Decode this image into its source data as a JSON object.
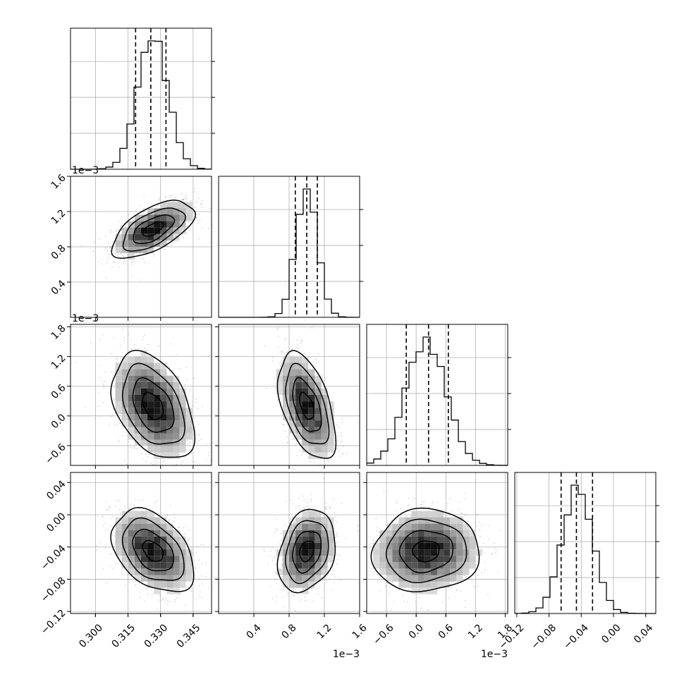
{
  "chart_data": {
    "type": "corner",
    "title": "",
    "parameters": [
      {
        "index": 0,
        "xlim": [
          0.2885,
          0.3535
        ],
        "ticks": [
          "0.300",
          "0.315",
          "0.330",
          "0.345"
        ],
        "tick_values": [
          0.3,
          0.315,
          0.33,
          0.345
        ],
        "offset_text": "",
        "quantiles": [
          0.3185,
          0.3255,
          0.3325
        ],
        "peak": 0.3265,
        "sigma": 0.007
      },
      {
        "index": 1,
        "xlim": [
          0.0,
          1.6
        ],
        "ticks": [
          "0.4",
          "0.8",
          "1.2",
          "1.6"
        ],
        "tick_values": [
          0.4,
          0.8,
          1.2,
          1.6
        ],
        "offset_text": "1e−3",
        "quantiles": [
          0.87,
          1.0,
          1.12
        ],
        "peak": 1.0,
        "sigma": 0.12
      },
      {
        "index": 2,
        "xlim": [
          -1.0,
          1.85
        ],
        "ticks": [
          "−0.6",
          "0.0",
          "0.6",
          "1.2",
          "1.8"
        ],
        "tick_values": [
          -0.6,
          0.0,
          0.6,
          1.2,
          1.8
        ],
        "offset_text": "1e−3",
        "quantiles": [
          -0.2,
          0.25,
          0.65
        ],
        "peak": 0.2,
        "sigma": 0.4
      },
      {
        "index": 3,
        "xlim": [
          -0.1225,
          0.0525
        ],
        "ticks": [
          "−0.12",
          "−0.08",
          "−0.04",
          "0.00",
          "0.04"
        ],
        "tick_values": [
          -0.12,
          -0.08,
          -0.04,
          0.0,
          0.04
        ],
        "offset_text": "",
        "quantiles": [
          -0.065,
          -0.046,
          -0.026
        ],
        "peak": -0.045,
        "sigma": 0.019
      }
    ],
    "row_ylims": [
      null,
      [
        0.0,
        1.6
      ],
      [
        -1.0,
        1.85
      ],
      [
        -0.1225,
        0.0525
      ]
    ],
    "row_yticks": [
      null,
      [
        "0.4",
        "0.8",
        "1.2",
        "1.6"
      ],
      [
        "−0.6",
        "0.0",
        "0.6",
        "1.2",
        "1.8"
      ],
      [
        "−0.12",
        "−0.08",
        "−0.04",
        "0.00",
        "0.04"
      ]
    ],
    "row_ytick_values": [
      null,
      [
        0.4,
        0.8,
        1.2,
        1.6
      ],
      [
        -0.6,
        0.0,
        0.6,
        1.2,
        1.8
      ],
      [
        -0.12,
        -0.08,
        -0.04,
        0.0,
        0.04
      ]
    ],
    "row_offset_text": [
      "",
      "1e−3",
      "1e−3",
      ""
    ],
    "correlations": {
      "1-0": 0.6,
      "2-0": -0.4,
      "2-1": -0.5,
      "3-0": -0.4,
      "3-1": 0.25,
      "3-2": 0.05
    },
    "contour_levels_sigma": [
      0.5,
      1.0,
      1.5,
      2.0
    ],
    "grid": true,
    "colors": {
      "line": "#000000",
      "grid": "#b0b0b0",
      "points": "#888888"
    }
  }
}
